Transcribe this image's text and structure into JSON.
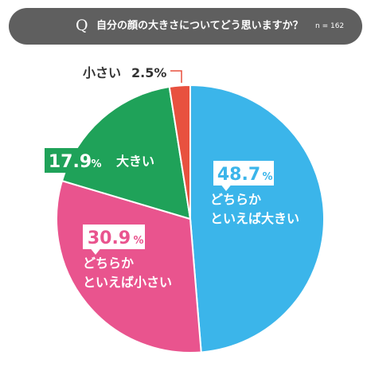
{
  "question": {
    "mark": "Q",
    "text": "自分の顔の大きさについてどう思いますか？",
    "n_label": "n = 162"
  },
  "chart_data": {
    "type": "pie",
    "title": "",
    "slices": [
      {
        "label": "どちらか\nといえば大きい",
        "value": 48.7,
        "value_text": "48.7",
        "unit": "%",
        "color": "#3bb5ea"
      },
      {
        "label": "どちらか\nといえば小さい",
        "value": 30.9,
        "value_text": "30.9",
        "unit": "%",
        "color": "#e9548e"
      },
      {
        "label": "大きい",
        "value": 17.9,
        "value_text": "17.9",
        "unit": "%",
        "color": "#1fa259"
      },
      {
        "label": "小さい",
        "value": 2.5,
        "value_text": "2.5",
        "unit": "%",
        "color": "#e8513f"
      }
    ],
    "start": "12 o'clock",
    "direction": "clockwise",
    "legend": "none"
  }
}
